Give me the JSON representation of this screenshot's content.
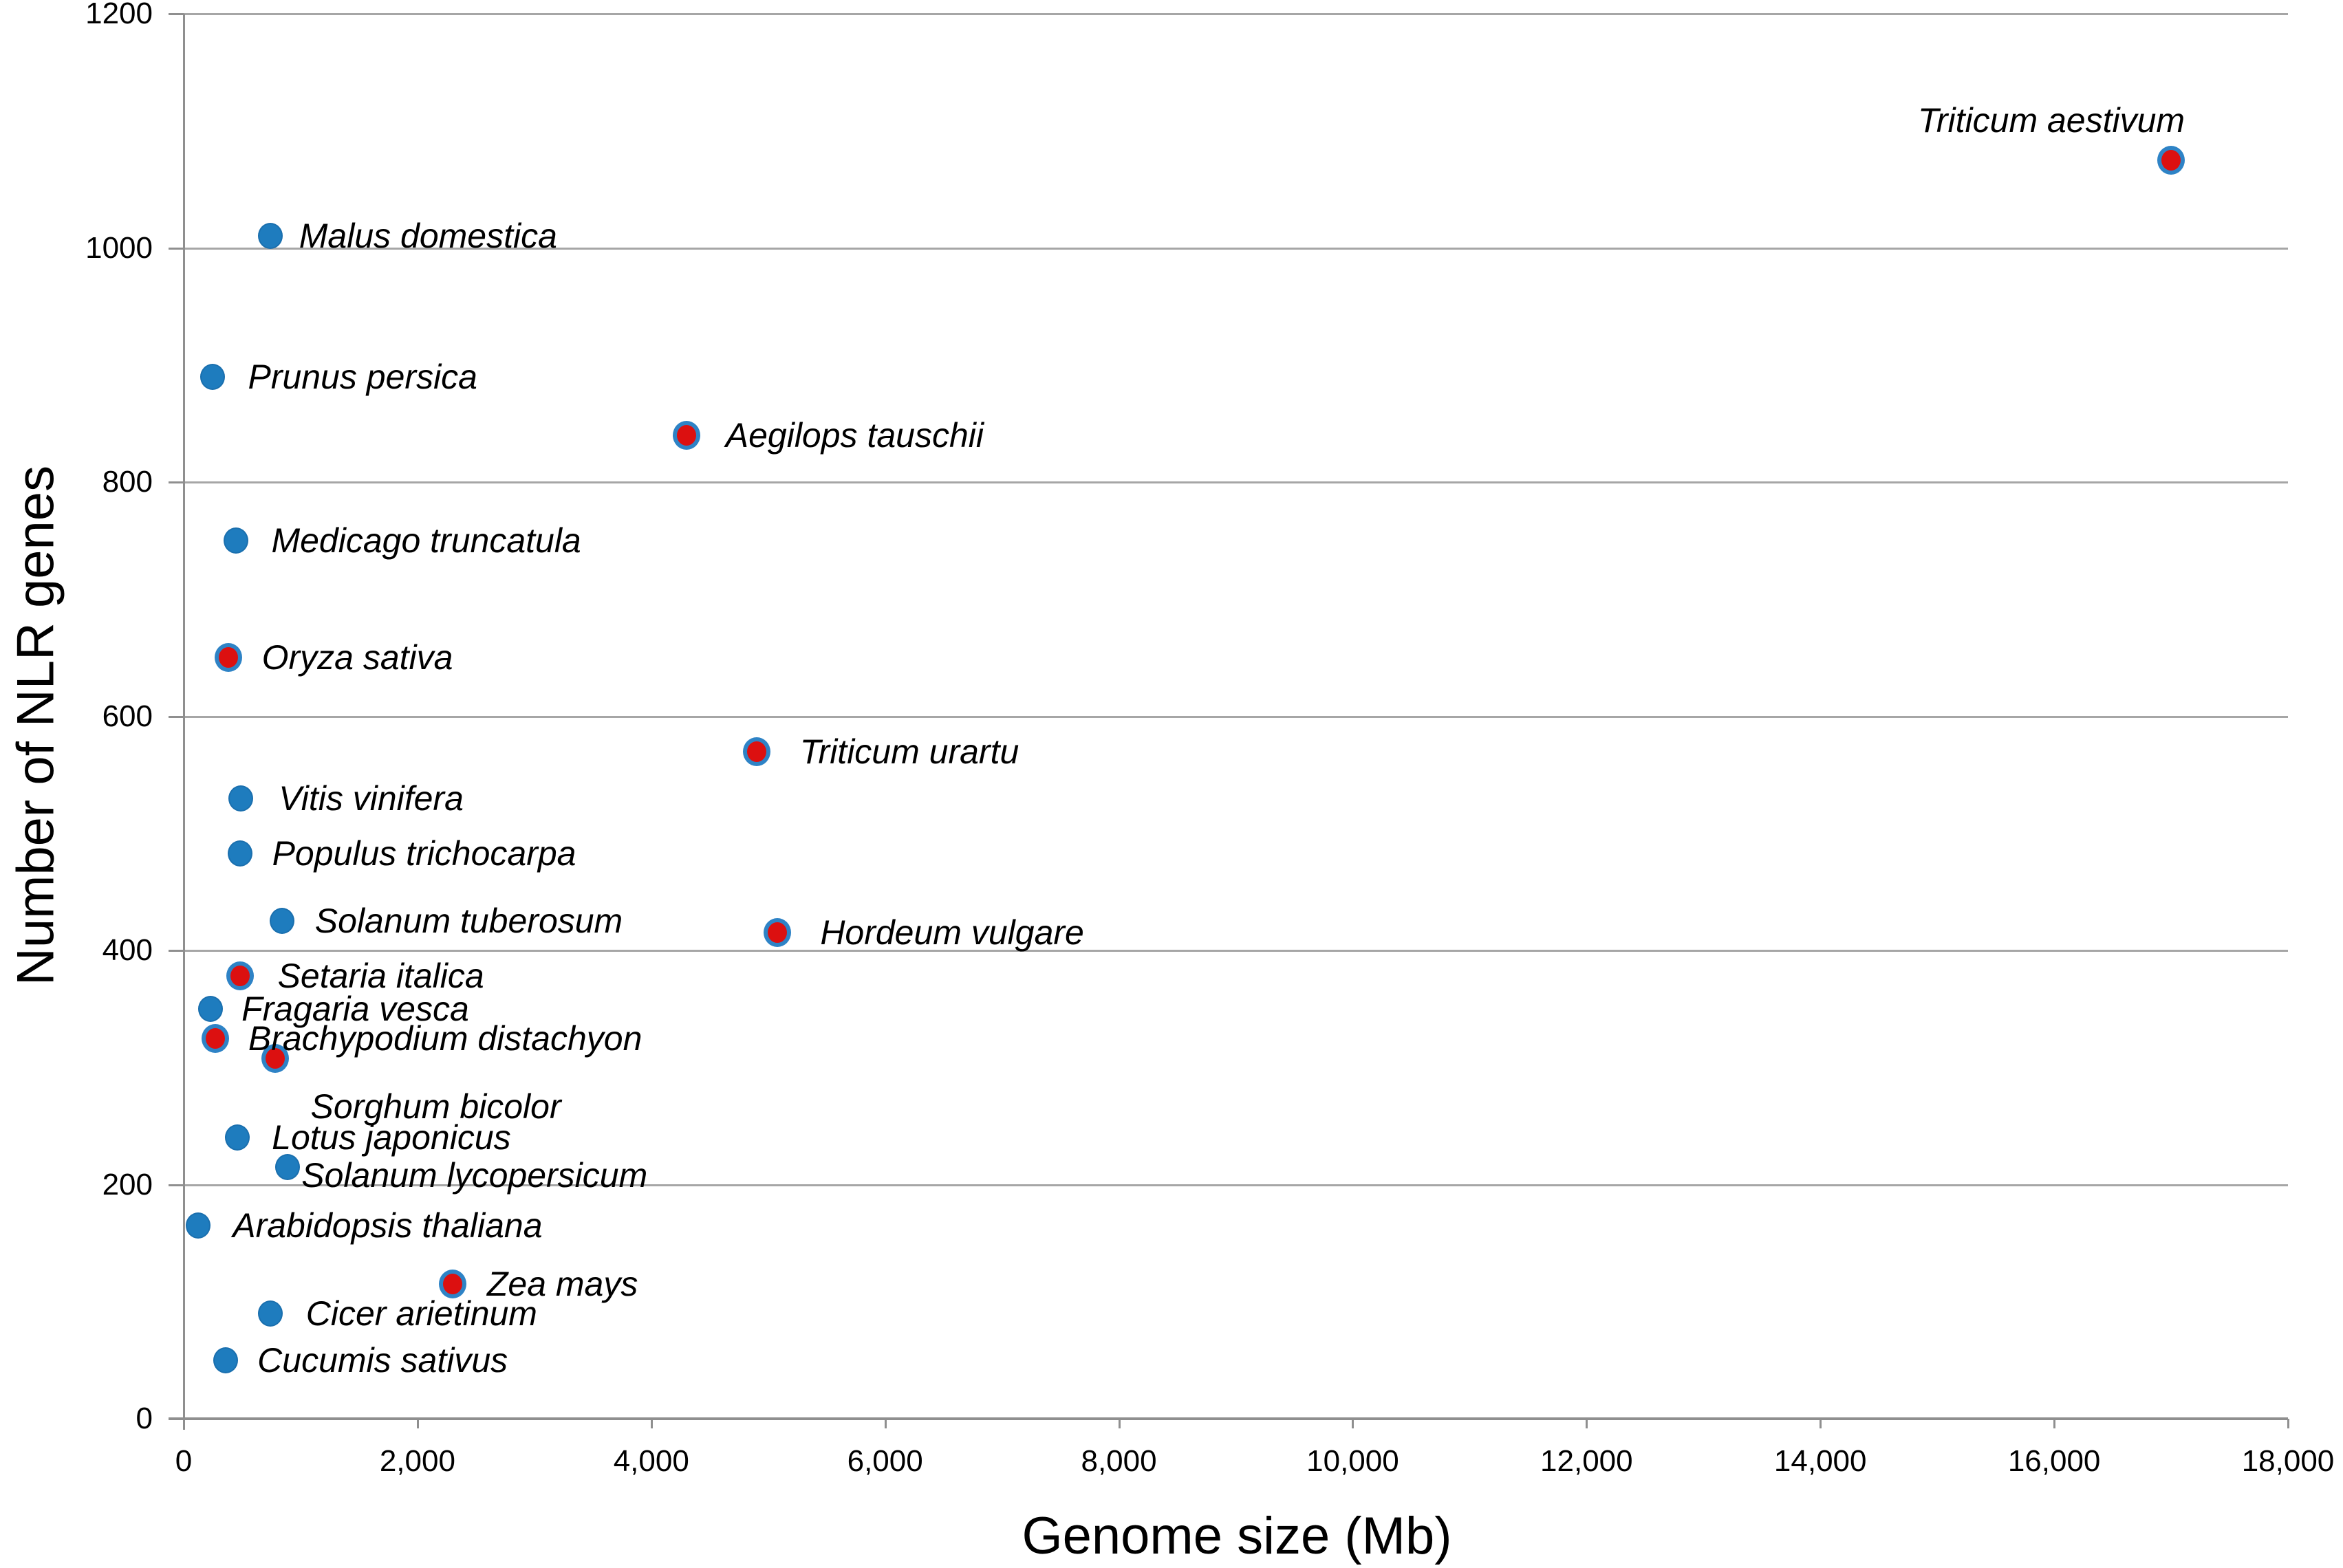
{
  "chart_data": {
    "type": "scatter",
    "xlabel": "Genome size (Mb)",
    "ylabel": "Number of NLR genes",
    "xlim": [
      0,
      18000
    ],
    "ylim": [
      0,
      1200
    ],
    "x_ticks": [
      0,
      2000,
      4000,
      6000,
      8000,
      10000,
      12000,
      14000,
      16000,
      18000
    ],
    "x_tick_labels": [
      "0",
      "2,000",
      "4,000",
      "6,000",
      "8,000",
      "10,000",
      "12,000",
      "14,000",
      "16,000",
      "18,000"
    ],
    "y_ticks": [
      0,
      200,
      400,
      600,
      800,
      1000,
      1200
    ],
    "y_tick_labels": [
      "0",
      "200",
      "400",
      "600",
      "800",
      "1000",
      "1200"
    ],
    "grid": "horizontal-only",
    "legend": "none",
    "colors": {
      "blue_marker_fill": "#1e7cbe",
      "blue_marker_edge": "#1a6fae",
      "red_marker_fill": "#dc1010",
      "red_marker_ring": "#2e83c6",
      "gridline": "#a6a6a6",
      "axis": "#8f8f8f",
      "text": "#000000"
    },
    "series": [
      {
        "name": "blue-markers",
        "marker": "solid-blue-circle",
        "points": [
          {
            "label": "Malus domestica",
            "x": 740,
            "y": 1010,
            "dx": 42
          },
          {
            "label": "Prunus persica",
            "x": 250,
            "y": 890,
            "dx": 51
          },
          {
            "label": "Medicago truncatula",
            "x": 450,
            "y": 750,
            "dx": 51
          },
          {
            "label": "Vitis vinifera",
            "x": 490,
            "y": 530,
            "dx": 55
          },
          {
            "label": "Populus trichocarpa",
            "x": 480,
            "y": 483,
            "dx": 47
          },
          {
            "label": "Solanum tuberosum",
            "x": 840,
            "y": 425,
            "dx": 48
          },
          {
            "label": "Fragaria vesca",
            "x": 230,
            "y": 350,
            "dx": 45
          },
          {
            "label": "Lotus japonicus",
            "x": 460,
            "y": 240,
            "dx": 50
          },
          {
            "label": "Solanum lycopersicum",
            "x": 890,
            "y": 215,
            "dx": 20,
            "dy": 12
          },
          {
            "label": "Arabidopsis thaliana",
            "x": 125,
            "y": 165,
            "dx": 50
          },
          {
            "label": "Cicer arietinum",
            "x": 740,
            "y": 90,
            "dx": 52
          },
          {
            "label": "Cucumis sativus",
            "x": 360,
            "y": 50,
            "dx": 46
          }
        ]
      },
      {
        "name": "red-markers",
        "marker": "red-circle-blue-ring",
        "points": [
          {
            "label": "Triticum aestivum",
            "x": 17000,
            "y": 1075,
            "dx": 20,
            "dy": -58,
            "align": "right"
          },
          {
            "label": "Aegilops tauschii",
            "x": 4300,
            "y": 840,
            "dx": 57
          },
          {
            "label": "Oryza sativa",
            "x": 380,
            "y": 650,
            "dx": 49
          },
          {
            "label": "Triticum urartu",
            "x": 4900,
            "y": 570,
            "dx": 63
          },
          {
            "label": "Hordeum vulgare",
            "x": 5080,
            "y": 415,
            "dx": 62
          },
          {
            "label": "Setaria italica",
            "x": 480,
            "y": 378,
            "dx": 55
          },
          {
            "label": "Brachypodium distachyon",
            "x": 270,
            "y": 325,
            "dx": 48
          },
          {
            "label": "Sorghum bicolor",
            "x": 780,
            "y": 308,
            "dx": 52,
            "dy": 70
          },
          {
            "label": "Zea mays",
            "x": 2300,
            "y": 115,
            "dx": 50
          }
        ]
      }
    ]
  }
}
